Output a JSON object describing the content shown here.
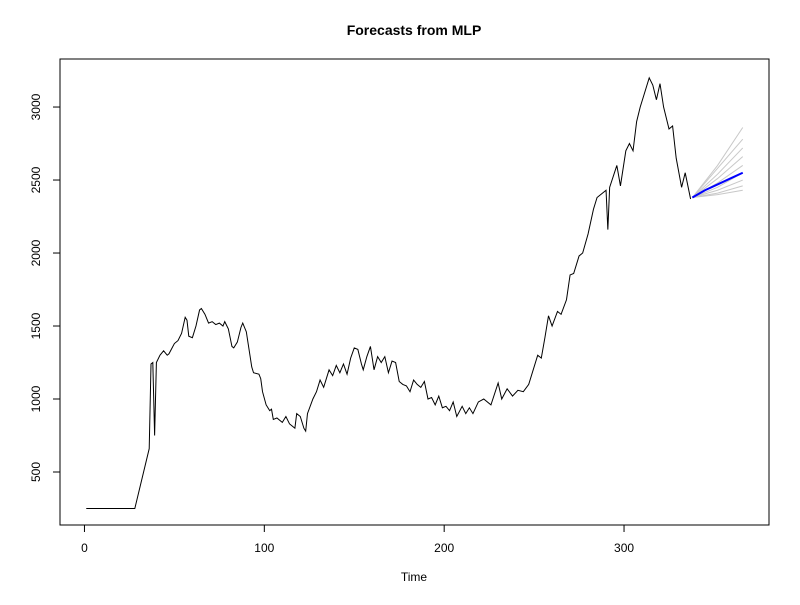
{
  "chart_data": {
    "type": "line",
    "title": "Forecasts from MLP",
    "x_label": "Time",
    "xlim": [
      -13.6,
      380.6
    ],
    "ylim": [
      137,
      3329
    ],
    "xticks": [
      0,
      100,
      200,
      300
    ],
    "yticks": [
      500,
      1000,
      1500,
      2000,
      2500,
      3000
    ],
    "series": [
      {
        "color": "#000000",
        "x": [
          1,
          28,
          36,
          37,
          38,
          39,
          40,
          42,
          44,
          46,
          47,
          50,
          52,
          54,
          56,
          57,
          58,
          60,
          62,
          64,
          65,
          67,
          69,
          71,
          73,
          75,
          77,
          78,
          80,
          81,
          82,
          83,
          85,
          87,
          88,
          90,
          91,
          92,
          93,
          94,
          97,
          98,
          99,
          101,
          103,
          104,
          105,
          107,
          110,
          112,
          114,
          116,
          117,
          118,
          120,
          122,
          123,
          124,
          127,
          129,
          131,
          133,
          136,
          138,
          140,
          142,
          144,
          146,
          148,
          150,
          152,
          154,
          155,
          157,
          159,
          161,
          163,
          165,
          167,
          169,
          171,
          173,
          175,
          177,
          179,
          181,
          183,
          185,
          187,
          189,
          191,
          193,
          195,
          197,
          199,
          201,
          203,
          205,
          207,
          210,
          212,
          214,
          216,
          219,
          222,
          226,
          230,
          232,
          235,
          238,
          241,
          244,
          247,
          252,
          254,
          256,
          258,
          260,
          263,
          265,
          268,
          270,
          272,
          275,
          277,
          280,
          283,
          285,
          287,
          290,
          291,
          292,
          296,
          298,
          301,
          303,
          305,
          307,
          309,
          311,
          314,
          316,
          318,
          320,
          322,
          325,
          327,
          329,
          332,
          334,
          337
        ],
        "values": [
          250,
          250,
          660,
          1240,
          1250,
          750,
          1250,
          1300,
          1330,
          1300,
          1310,
          1380,
          1400,
          1450,
          1560,
          1540,
          1430,
          1420,
          1500,
          1610,
          1620,
          1580,
          1520,
          1530,
          1510,
          1520,
          1500,
          1530,
          1480,
          1420,
          1360,
          1350,
          1390,
          1490,
          1520,
          1460,
          1380,
          1300,
          1220,
          1180,
          1170,
          1140,
          1050,
          960,
          920,
          930,
          860,
          870,
          840,
          880,
          830,
          810,
          800,
          900,
          880,
          800,
          780,
          900,
          1000,
          1050,
          1130,
          1080,
          1200,
          1160,
          1230,
          1180,
          1240,
          1170,
          1280,
          1350,
          1340,
          1240,
          1200,
          1290,
          1360,
          1200,
          1290,
          1250,
          1290,
          1180,
          1260,
          1250,
          1120,
          1100,
          1090,
          1050,
          1130,
          1100,
          1080,
          1120,
          1000,
          1010,
          960,
          1020,
          940,
          950,
          920,
          980,
          880,
          950,
          900,
          940,
          900,
          980,
          1000,
          960,
          1110,
          1000,
          1070,
          1020,
          1060,
          1050,
          1100,
          1300,
          1280,
          1420,
          1570,
          1500,
          1600,
          1580,
          1680,
          1850,
          1860,
          1980,
          2000,
          2130,
          2300,
          2380,
          2400,
          2430,
          2160,
          2450,
          2600,
          2460,
          2700,
          2750,
          2700,
          2900,
          3000,
          3080,
          3200,
          3150,
          3050,
          3160,
          3000,
          2850,
          2870,
          2650,
          2450,
          2550,
          2370
        ]
      },
      {
        "color": "#c8c8c8",
        "x": [
          338,
          352,
          366
        ],
        "values": [
          2380,
          2600,
          2860
        ]
      },
      {
        "color": "#c8c8c8",
        "x": [
          338,
          352,
          366
        ],
        "values": [
          2380,
          2580,
          2780
        ]
      },
      {
        "color": "#c8c8c8",
        "x": [
          338,
          352,
          366
        ],
        "values": [
          2380,
          2540,
          2720
        ]
      },
      {
        "color": "#c8c8c8",
        "x": [
          338,
          352,
          366
        ],
        "values": [
          2380,
          2510,
          2660
        ]
      },
      {
        "color": "#c8c8c8",
        "x": [
          338,
          352,
          366
        ],
        "values": [
          2380,
          2480,
          2600
        ]
      },
      {
        "color": "#c8c8c8",
        "x": [
          338,
          352,
          366
        ],
        "values": [
          2380,
          2450,
          2550
        ]
      },
      {
        "color": "#c8c8c8",
        "x": [
          338,
          352,
          366
        ],
        "values": [
          2380,
          2430,
          2500
        ]
      },
      {
        "color": "#c8c8c8",
        "x": [
          338,
          352,
          366
        ],
        "values": [
          2380,
          2410,
          2460
        ]
      },
      {
        "color": "#c8c8c8",
        "x": [
          338,
          352,
          366
        ],
        "values": [
          2380,
          2400,
          2430
        ]
      },
      {
        "color": "#0000ff",
        "x": [
          338,
          345,
          352,
          359,
          366
        ],
        "values": [
          2380,
          2430,
          2470,
          2510,
          2550
        ]
      }
    ]
  }
}
